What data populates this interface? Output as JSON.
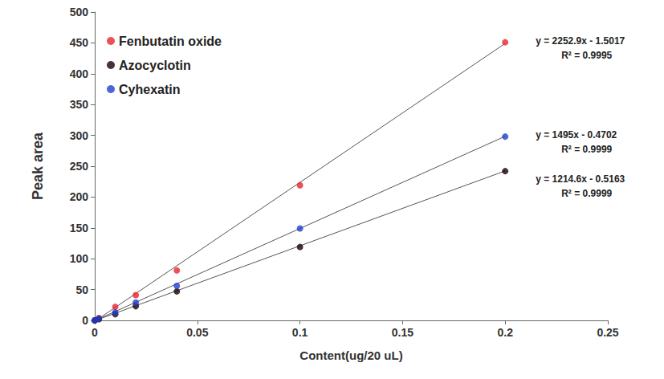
{
  "chart_data": {
    "type": "scatter",
    "x_label": "Content(ug/20 uL)",
    "y_label": "Peak area",
    "xlim": [
      0,
      0.25
    ],
    "xticks": [
      0,
      0.05,
      0.1,
      0.15,
      0.2,
      0.25
    ],
    "ylim": [
      0,
      500
    ],
    "yticks": [
      0,
      50,
      100,
      150,
      200,
      250,
      300,
      350,
      400,
      450,
      500
    ],
    "grid": false,
    "legend": "upper left",
    "x": [
      0,
      0.002,
      0.01,
      0.02,
      0.04,
      0.1,
      0.2
    ],
    "series": [
      {
        "name": "Fenbutatin oxide",
        "color": "#e8262e",
        "marker": "circle",
        "values": [
          0,
          4,
          22,
          41,
          81,
          219,
          451
        ],
        "trendline": {
          "slope": 2252.9,
          "intercept": -1.5017,
          "equation": "y = 2252.9x - 1.5017",
          "r_squared": 0.9995,
          "r_squared_label": "R² = 0.9995"
        }
      },
      {
        "name": "Azocyclotin",
        "color": "#1a0000",
        "marker": "circle",
        "values": [
          0,
          2,
          10,
          23,
          47,
          119,
          242
        ],
        "trendline": {
          "slope": 1214.6,
          "intercept": -0.5163,
          "equation": "y = 1214.6x - 0.5163",
          "r_squared": 0.9999,
          "r_squared_label": "R² = 0.9999"
        }
      },
      {
        "name": "Cyhexatin",
        "color": "#1f3fd0",
        "marker": "circle",
        "values": [
          0,
          3,
          13,
          29,
          56,
          149,
          298
        ],
        "trendline": {
          "slope": 1495,
          "intercept": -0.4702,
          "equation": "y = 1495x - 0.4702",
          "r_squared": 0.9999,
          "r_squared_label": "R² = 0.9999"
        }
      }
    ]
  }
}
